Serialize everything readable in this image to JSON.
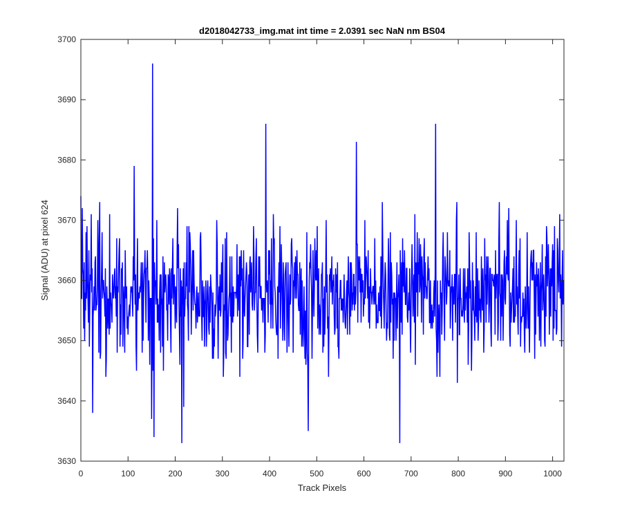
{
  "chart_data": {
    "type": "line",
    "title": "d2018042733_img.mat int time = 2.0391 sec  NaN nm BS04",
    "xlabel": "Track Pixels",
    "ylabel": "Signal (ADU) at pixel 624",
    "xlim": [
      0,
      1024
    ],
    "ylim": [
      3630,
      3700
    ],
    "xticks": [
      0,
      100,
      200,
      300,
      400,
      500,
      600,
      700,
      800,
      900,
      1000
    ],
    "yticks": [
      3630,
      3640,
      3650,
      3660,
      3670,
      3680,
      3690,
      3700
    ],
    "xtick_labels": [
      "0",
      "100",
      "200",
      "300",
      "400",
      "500",
      "600",
      "700",
      "800",
      "900",
      "1000"
    ],
    "ytick_labels": [
      "3630",
      "3640",
      "3650",
      "3660",
      "3670",
      "3680",
      "3690",
      "3700"
    ],
    "grid": false,
    "legend": "none",
    "line_color": "#0000ff",
    "series": [
      {
        "n_points": 1024,
        "mean": 3657.5,
        "noise_std": 5.5,
        "min_observed": 3633,
        "max_observed": 3696,
        "notable_points": [
          {
            "x": 0,
            "y": 3674
          },
          {
            "x": 22,
            "y": 3671
          },
          {
            "x": 25,
            "y": 3638
          },
          {
            "x": 113,
            "y": 3679
          },
          {
            "x": 150,
            "y": 3637
          },
          {
            "x": 152,
            "y": 3696
          },
          {
            "x": 155,
            "y": 3634
          },
          {
            "x": 214,
            "y": 3633
          },
          {
            "x": 218,
            "y": 3639
          },
          {
            "x": 392,
            "y": 3686
          },
          {
            "x": 482,
            "y": 3635
          },
          {
            "x": 584,
            "y": 3683
          },
          {
            "x": 676,
            "y": 3633
          },
          {
            "x": 752,
            "y": 3686
          },
          {
            "x": 1023,
            "y": 3660
          }
        ]
      }
    ]
  }
}
